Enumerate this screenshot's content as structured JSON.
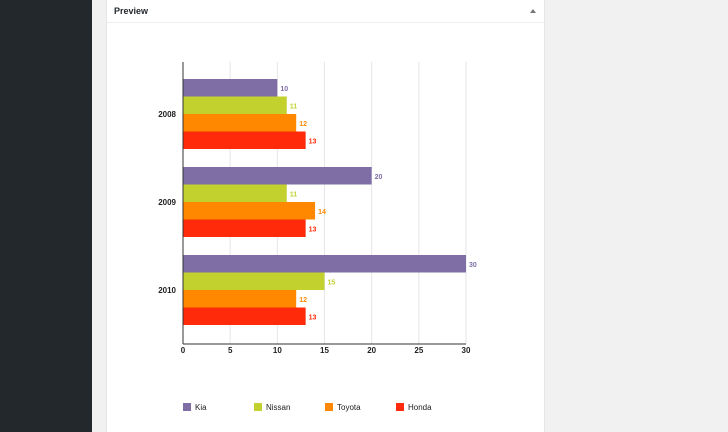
{
  "preview": {
    "title": "Preview"
  },
  "chart_data": {
    "type": "bar",
    "orientation": "horizontal",
    "categories": [
      "2008",
      "2009",
      "2010"
    ],
    "series": [
      {
        "name": "Kia",
        "values": [
          10,
          20,
          30
        ],
        "color": "#7f6ea6"
      },
      {
        "name": "Nissan",
        "values": [
          11,
          11,
          15
        ],
        "color": "#c3d12f"
      },
      {
        "name": "Toyota",
        "values": [
          12,
          14,
          12
        ],
        "color": "#ff8800"
      },
      {
        "name": "Honda",
        "values": [
          13,
          13,
          13
        ],
        "color": "#ff2a0a"
      }
    ],
    "xlim": [
      0,
      30
    ],
    "xticks": [
      "0",
      "5",
      "10",
      "15",
      "20",
      "25",
      "30"
    ],
    "grid": true,
    "legend_position": "bottom"
  }
}
